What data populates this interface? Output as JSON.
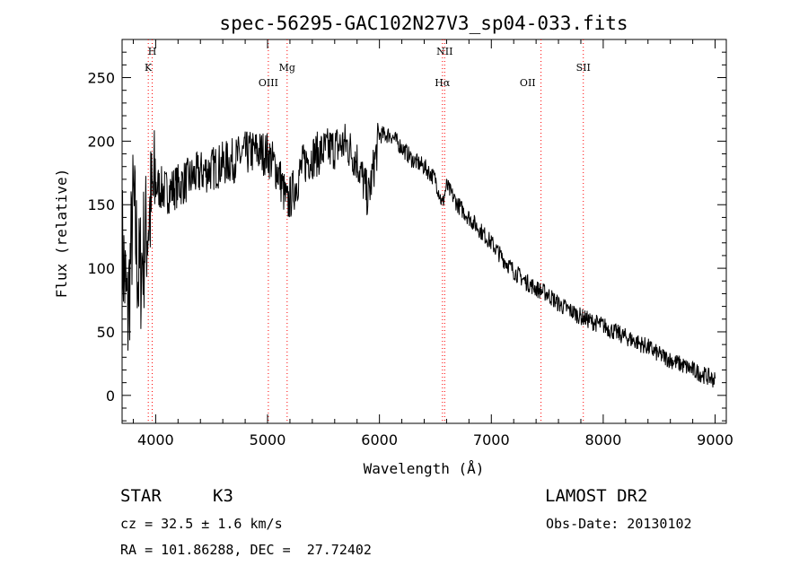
{
  "chart_data": {
    "type": "line",
    "title": "spec-56295-GAC102N27V3_sp04-033.fits",
    "xlabel": "Wavelength (Å)",
    "ylabel": "Flux (relative)",
    "xlim": [
      3700,
      9100
    ],
    "ylim": [
      -22,
      280
    ],
    "x_ticks": [
      4000,
      5000,
      6000,
      7000,
      8000,
      9000
    ],
    "y_ticks": [
      0,
      50,
      100,
      150,
      200,
      250
    ],
    "grid": false,
    "line_color": "#000000",
    "marker_color": "#ff0000",
    "spectral_lines": [
      {
        "name": "K",
        "wavelength": 3934,
        "label_row": 2
      },
      {
        "name": "H",
        "wavelength": 3969,
        "label_row": 1
      },
      {
        "name": "OIII",
        "wavelength": 5007,
        "label_row": 3
      },
      {
        "name": "Mg",
        "wavelength": 5175,
        "label_row": 2
      },
      {
        "name": "NII",
        "wavelength": 6583,
        "label_row": 1
      },
      {
        "name": "Hα",
        "wavelength": 6563,
        "label_row": 3
      },
      {
        "name": "OII",
        "wavelength": 7325,
        "label_row": 3,
        "marker_wavelength": 7444
      },
      {
        "name": "SII",
        "wavelength": 7822,
        "label_row": 2,
        "marker_wavelength": 7822
      }
    ],
    "series": [
      {
        "x": [
          3700,
          3750,
          3800,
          3850,
          3900,
          3950,
          4000,
          4100,
          4200,
          4300,
          4400,
          4500,
          4600,
          4700,
          4800,
          4900,
          5000,
          5100,
          5175,
          5250,
          5300,
          5350,
          5400,
          5500,
          5600,
          5700,
          5800,
          5850,
          5900,
          5950,
          6000,
          6100,
          6200,
          6300,
          6400,
          6500,
          6563,
          6600,
          6700,
          6800,
          6900,
          7000,
          7100,
          7200,
          7300,
          7400,
          7500,
          7600,
          7700,
          7800,
          7900,
          8000,
          8100,
          8200,
          8300,
          8400,
          8500,
          8600,
          8700,
          8800,
          8900,
          9000
        ],
        "y": [
          120,
          60,
          150,
          90,
          120,
          145,
          165,
          160,
          165,
          170,
          175,
          178,
          182,
          185,
          190,
          192,
          190,
          175,
          150,
          165,
          178,
          185,
          188,
          192,
          195,
          198,
          185,
          170,
          155,
          180,
          205,
          205,
          195,
          185,
          180,
          170,
          150,
          165,
          150,
          140,
          130,
          120,
          108,
          98,
          90,
          84,
          80,
          72,
          67,
          62,
          58,
          55,
          50,
          46,
          42,
          38,
          32,
          28,
          24,
          20,
          16,
          12
        ]
      }
    ],
    "info": {
      "object_class": "STAR",
      "subclass": "K3",
      "survey": "LAMOST DR2",
      "cz": "cz = 32.5 ± 1.6 km/s",
      "obs_date": "Obs-Date: 20130102",
      "coords": "RA = 101.86288, DEC =  27.72402"
    }
  }
}
